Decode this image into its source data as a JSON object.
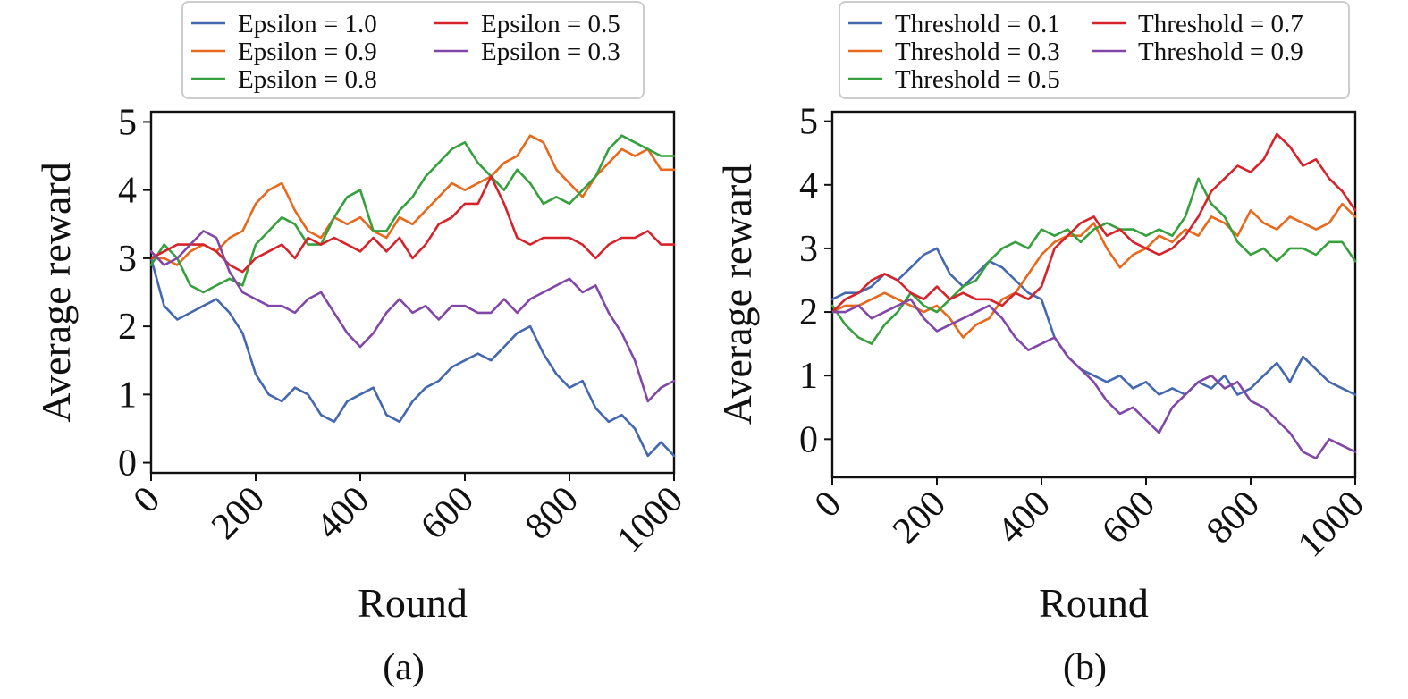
{
  "colors": {
    "blue": "#4468b0",
    "orange": "#e8681c",
    "green": "#35a03d",
    "red": "#d7222a",
    "purple": "#8147a8"
  },
  "chart_data": [
    {
      "type": "line",
      "caption": "(a)",
      "xlabel": "Round",
      "ylabel": "Average reward",
      "xlim": [
        0,
        1000
      ],
      "ylim": [
        -0.15,
        5.15
      ],
      "xticks": [
        0,
        200,
        400,
        600,
        800,
        1000
      ],
      "xtick_labels": [
        "0",
        "200",
        "400",
        "600",
        "800",
        "1000"
      ],
      "yticks": [
        0,
        1,
        2,
        3,
        4,
        5
      ],
      "ytick_labels": [
        "0",
        "1",
        "2",
        "3",
        "4",
        "5"
      ],
      "legend": {
        "placement": "top-center",
        "columns": 2
      },
      "x": [
        0,
        25,
        50,
        75,
        100,
        125,
        150,
        175,
        200,
        225,
        250,
        275,
        300,
        325,
        350,
        375,
        400,
        425,
        450,
        475,
        500,
        525,
        550,
        575,
        600,
        625,
        650,
        675,
        700,
        725,
        750,
        775,
        800,
        825,
        850,
        875,
        900,
        925,
        950,
        975,
        1000
      ],
      "series": [
        {
          "name": "Epsilon = 1.0",
          "color": "blue",
          "values": [
            3.0,
            2.3,
            2.1,
            2.2,
            2.3,
            2.4,
            2.2,
            1.9,
            1.3,
            1.0,
            0.9,
            1.1,
            1.0,
            0.7,
            0.6,
            0.9,
            1.0,
            1.1,
            0.7,
            0.6,
            0.9,
            1.1,
            1.2,
            1.4,
            1.5,
            1.6,
            1.5,
            1.7,
            1.9,
            2.0,
            1.6,
            1.3,
            1.1,
            1.2,
            0.8,
            0.6,
            0.7,
            0.5,
            0.1,
            0.3,
            0.1
          ]
        },
        {
          "name": "Epsilon = 0.9",
          "color": "orange",
          "values": [
            3.0,
            3.0,
            2.9,
            3.1,
            3.2,
            3.1,
            3.3,
            3.4,
            3.8,
            4.0,
            4.1,
            3.7,
            3.4,
            3.3,
            3.6,
            3.5,
            3.6,
            3.4,
            3.3,
            3.6,
            3.5,
            3.7,
            3.9,
            4.1,
            4.0,
            4.1,
            4.2,
            4.4,
            4.5,
            4.8,
            4.7,
            4.3,
            4.1,
            3.9,
            4.2,
            4.4,
            4.6,
            4.5,
            4.6,
            4.3,
            4.3
          ]
        },
        {
          "name": "Epsilon = 0.8",
          "color": "green",
          "values": [
            2.9,
            3.2,
            3.0,
            2.6,
            2.5,
            2.6,
            2.7,
            2.6,
            3.2,
            3.4,
            3.6,
            3.5,
            3.2,
            3.2,
            3.6,
            3.9,
            4.0,
            3.4,
            3.4,
            3.7,
            3.9,
            4.2,
            4.4,
            4.6,
            4.7,
            4.4,
            4.2,
            4.0,
            4.3,
            4.1,
            3.8,
            3.9,
            3.8,
            4.0,
            4.2,
            4.6,
            4.8,
            4.7,
            4.6,
            4.5,
            4.5
          ]
        },
        {
          "name": "Epsilon = 0.5",
          "color": "red",
          "values": [
            3.0,
            3.1,
            3.2,
            3.2,
            3.2,
            3.1,
            2.9,
            2.8,
            3.0,
            3.1,
            3.2,
            3.0,
            3.3,
            3.2,
            3.3,
            3.2,
            3.1,
            3.3,
            3.1,
            3.3,
            3.0,
            3.2,
            3.5,
            3.6,
            3.8,
            3.8,
            4.2,
            3.8,
            3.3,
            3.2,
            3.3,
            3.3,
            3.3,
            3.2,
            3.0,
            3.2,
            3.3,
            3.3,
            3.4,
            3.2,
            3.2
          ]
        },
        {
          "name": "Epsilon = 0.3",
          "color": "purple",
          "values": [
            3.1,
            2.9,
            3.0,
            3.2,
            3.4,
            3.3,
            2.8,
            2.5,
            2.4,
            2.3,
            2.3,
            2.2,
            2.4,
            2.5,
            2.2,
            1.9,
            1.7,
            1.9,
            2.2,
            2.4,
            2.2,
            2.3,
            2.1,
            2.3,
            2.3,
            2.2,
            2.2,
            2.4,
            2.2,
            2.4,
            2.5,
            2.6,
            2.7,
            2.5,
            2.6,
            2.2,
            1.9,
            1.5,
            0.9,
            1.1,
            1.2
          ]
        }
      ]
    },
    {
      "type": "line",
      "caption": "(b)",
      "xlabel": "Round",
      "ylabel": "Average reward",
      "xlim": [
        0,
        1000
      ],
      "ylim": [
        -0.6,
        5.15
      ],
      "xticks": [
        0,
        200,
        400,
        600,
        800,
        1000
      ],
      "xtick_labels": [
        "0",
        "200",
        "400",
        "600",
        "800",
        "1000"
      ],
      "yticks": [
        0,
        1,
        2,
        3,
        4,
        5
      ],
      "ytick_labels": [
        "0",
        "1",
        "2",
        "3",
        "4",
        "5"
      ],
      "legend": {
        "placement": "top-center",
        "columns": 2
      },
      "x": [
        0,
        25,
        50,
        75,
        100,
        125,
        150,
        175,
        200,
        225,
        250,
        275,
        300,
        325,
        350,
        375,
        400,
        425,
        450,
        475,
        500,
        525,
        550,
        575,
        600,
        625,
        650,
        675,
        700,
        725,
        750,
        775,
        800,
        825,
        850,
        875,
        900,
        925,
        950,
        975,
        1000
      ],
      "series": [
        {
          "name": "Threshold = 0.1",
          "color": "blue",
          "values": [
            2.2,
            2.3,
            2.3,
            2.4,
            2.6,
            2.5,
            2.7,
            2.9,
            3.0,
            2.6,
            2.4,
            2.6,
            2.8,
            2.7,
            2.5,
            2.3,
            2.2,
            1.6,
            1.3,
            1.1,
            1.0,
            0.9,
            1.0,
            0.8,
            0.9,
            0.7,
            0.8,
            0.7,
            0.9,
            0.8,
            1.0,
            0.7,
            0.8,
            1.0,
            1.2,
            0.9,
            1.3,
            1.1,
            0.9,
            0.8,
            0.7
          ]
        },
        {
          "name": "Threshold = 0.3",
          "color": "orange",
          "values": [
            2.0,
            2.1,
            2.1,
            2.2,
            2.3,
            2.2,
            2.1,
            2.0,
            2.1,
            1.9,
            1.6,
            1.8,
            1.9,
            2.2,
            2.3,
            2.6,
            2.9,
            3.1,
            3.2,
            3.2,
            3.4,
            3.0,
            2.7,
            2.9,
            3.0,
            3.2,
            3.1,
            3.3,
            3.2,
            3.5,
            3.4,
            3.2,
            3.6,
            3.4,
            3.3,
            3.5,
            3.4,
            3.3,
            3.4,
            3.7,
            3.5
          ]
        },
        {
          "name": "Threshold = 0.5",
          "color": "green",
          "values": [
            2.1,
            1.8,
            1.6,
            1.5,
            1.8,
            2.0,
            2.3,
            2.1,
            2.0,
            2.2,
            2.4,
            2.5,
            2.8,
            3.0,
            3.1,
            3.0,
            3.3,
            3.2,
            3.3,
            3.1,
            3.3,
            3.4,
            3.3,
            3.3,
            3.2,
            3.3,
            3.2,
            3.5,
            4.1,
            3.7,
            3.5,
            3.1,
            2.9,
            3.0,
            2.8,
            3.0,
            3.0,
            2.9,
            3.1,
            3.1,
            2.8
          ]
        },
        {
          "name": "Threshold = 0.7",
          "color": "red",
          "values": [
            2.0,
            2.2,
            2.3,
            2.5,
            2.6,
            2.5,
            2.3,
            2.2,
            2.4,
            2.2,
            2.3,
            2.2,
            2.2,
            2.1,
            2.3,
            2.2,
            2.4,
            3.0,
            3.2,
            3.4,
            3.5,
            3.2,
            3.3,
            3.1,
            3.0,
            2.9,
            3.0,
            3.2,
            3.5,
            3.9,
            4.1,
            4.3,
            4.2,
            4.4,
            4.8,
            4.6,
            4.3,
            4.4,
            4.1,
            3.9,
            3.6
          ]
        },
        {
          "name": "Threshold = 0.9",
          "color": "purple",
          "values": [
            2.0,
            2.0,
            2.1,
            1.9,
            2.0,
            2.1,
            2.2,
            1.9,
            1.7,
            1.8,
            1.9,
            2.0,
            2.1,
            1.9,
            1.6,
            1.4,
            1.5,
            1.6,
            1.3,
            1.1,
            0.9,
            0.6,
            0.4,
            0.5,
            0.3,
            0.1,
            0.5,
            0.7,
            0.9,
            1.0,
            0.8,
            0.9,
            0.6,
            0.5,
            0.3,
            0.1,
            -0.2,
            -0.3,
            0.0,
            -0.1,
            -0.2
          ]
        }
      ]
    }
  ]
}
